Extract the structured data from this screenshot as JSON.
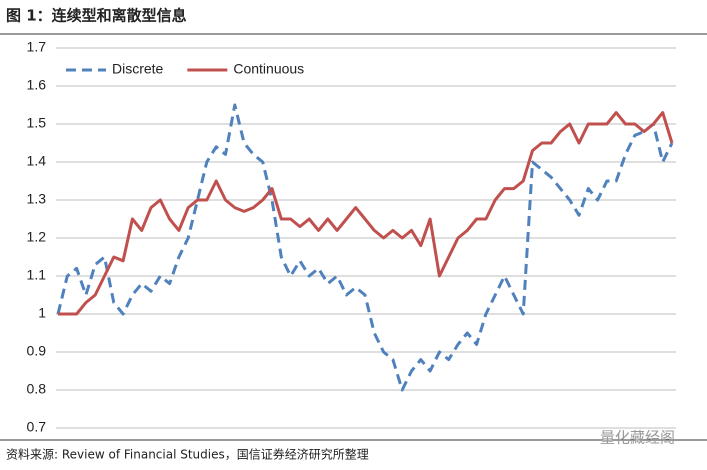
{
  "chart_data": {
    "type": "line",
    "title": "图 1：连续型和离散型信息",
    "source": "资料来源: Review of Financial Studies，国信证券经济研究所整理",
    "watermark": "量化藏经阁",
    "ylim": [
      0.7,
      1.7
    ],
    "yticks": [
      0.7,
      0.8,
      0.9,
      1,
      1.1,
      1.2,
      1.3,
      1.4,
      1.5,
      1.6,
      1.7
    ],
    "grid": true,
    "legend": "top-left",
    "series": [
      {
        "name": "Discrete",
        "color": "#4f81bd",
        "style": "dashed",
        "values": [
          1.0,
          1.1,
          1.12,
          1.05,
          1.13,
          1.15,
          1.03,
          1.0,
          1.05,
          1.08,
          1.06,
          1.1,
          1.08,
          1.15,
          1.2,
          1.3,
          1.4,
          1.44,
          1.42,
          1.55,
          1.45,
          1.42,
          1.4,
          1.3,
          1.15,
          1.1,
          1.14,
          1.1,
          1.12,
          1.08,
          1.1,
          1.05,
          1.07,
          1.05,
          0.95,
          0.9,
          0.88,
          0.8,
          0.85,
          0.88,
          0.85,
          0.9,
          0.88,
          0.92,
          0.95,
          0.92,
          1.0,
          1.05,
          1.1,
          1.05,
          1.0,
          1.4,
          1.38,
          1.36,
          1.33,
          1.3,
          1.26,
          1.33,
          1.3,
          1.35,
          1.35,
          1.42,
          1.47,
          1.48,
          1.5,
          1.4,
          1.45
        ]
      },
      {
        "name": "Continuous",
        "color": "#c0504d",
        "style": "solid",
        "values": [
          1.0,
          1.0,
          1.0,
          1.03,
          1.05,
          1.1,
          1.15,
          1.14,
          1.25,
          1.22,
          1.28,
          1.3,
          1.25,
          1.22,
          1.28,
          1.3,
          1.3,
          1.35,
          1.3,
          1.28,
          1.27,
          1.28,
          1.3,
          1.33,
          1.25,
          1.25,
          1.23,
          1.25,
          1.22,
          1.25,
          1.22,
          1.25,
          1.28,
          1.25,
          1.22,
          1.2,
          1.22,
          1.2,
          1.22,
          1.18,
          1.25,
          1.1,
          1.15,
          1.2,
          1.22,
          1.25,
          1.25,
          1.3,
          1.33,
          1.33,
          1.35,
          1.43,
          1.45,
          1.45,
          1.48,
          1.5,
          1.45,
          1.5,
          1.5,
          1.5,
          1.53,
          1.5,
          1.5,
          1.48,
          1.5,
          1.53,
          1.45
        ]
      }
    ]
  }
}
